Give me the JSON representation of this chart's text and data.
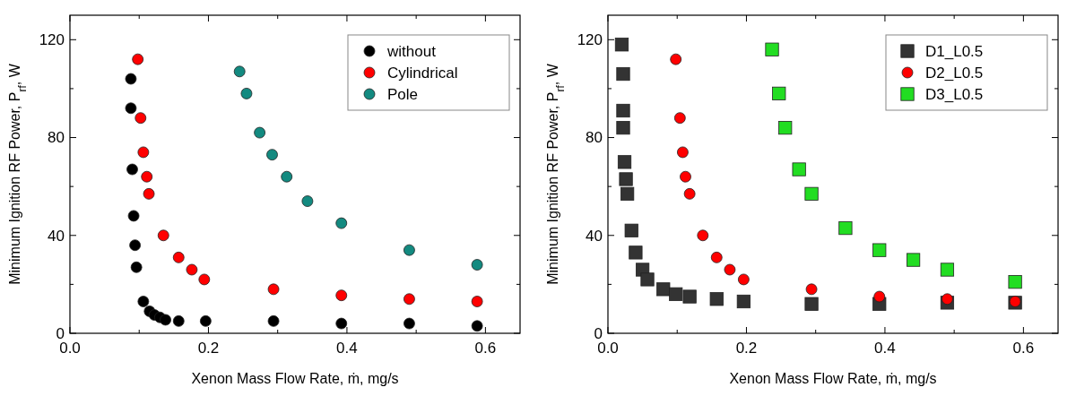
{
  "chart_data": [
    {
      "type": "scatter",
      "xlabel": "Xenon Mass Flow Rate, ṁ, mg/s",
      "ylabel": "Minimum Ignition RF Power, P$_{rf}$, W",
      "xlim": [
        0,
        0.65
      ],
      "ylim": [
        0,
        130
      ],
      "xticks": [
        {
          "value": 0,
          "label": "0.0"
        },
        {
          "value": 0.1,
          "label": null
        },
        {
          "value": 0.2,
          "label": "0.2"
        },
        {
          "value": 0.3,
          "label": null
        },
        {
          "value": 0.4,
          "label": "0.4"
        },
        {
          "value": 0.5,
          "label": null
        },
        {
          "value": 0.6,
          "label": "0.6"
        }
      ],
      "yticks": [
        0,
        {
          "value": 20,
          "label": null
        },
        40,
        {
          "value": 60,
          "label": null
        },
        80,
        {
          "value": 100,
          "label": null
        },
        120
      ],
      "legend": "top right",
      "marker": "circle",
      "series": [
        {
          "name": "without",
          "color": "#000000",
          "x": [
            0.088,
            0.088,
            0.09,
            0.092,
            0.094,
            0.096,
            0.106,
            0.115,
            0.122,
            0.13,
            0.138,
            0.157,
            0.196,
            0.294,
            0.392,
            0.49,
            0.588
          ],
          "values": [
            104,
            92,
            67,
            48,
            36,
            27,
            13,
            9,
            7.5,
            6.5,
            5.5,
            5,
            5,
            5,
            4,
            4,
            3
          ]
        },
        {
          "name": "Cylindrical",
          "color": "#ff0000",
          "x": [
            0.098,
            0.102,
            0.106,
            0.111,
            0.114,
            0.135,
            0.157,
            0.176,
            0.194,
            0.294,
            0.392,
            0.49,
            0.588
          ],
          "values": [
            112,
            88,
            74,
            64,
            57,
            40,
            31,
            26,
            22,
            18,
            15.5,
            14,
            13
          ]
        },
        {
          "name": "Pole",
          "color": "#138a80",
          "x": [
            0.245,
            0.255,
            0.274,
            0.292,
            0.313,
            0.343,
            0.392,
            0.49,
            0.588
          ],
          "values": [
            107,
            98,
            82,
            73,
            64,
            54,
            45,
            34,
            28
          ]
        }
      ]
    },
    {
      "type": "scatter",
      "xlabel": "Xenon Mass Flow Rate, ṁ, mg/s",
      "ylabel": "Minimum Ignition RF Power, P$_{rf}$, W",
      "xlim": [
        0,
        0.65
      ],
      "ylim": [
        0,
        130
      ],
      "xticks": [
        {
          "value": 0,
          "label": "0.0"
        },
        {
          "value": 0.1,
          "label": null
        },
        {
          "value": 0.2,
          "label": "0.2"
        },
        {
          "value": 0.3,
          "label": null
        },
        {
          "value": 0.4,
          "label": "0.4"
        },
        {
          "value": 0.5,
          "label": null
        },
        {
          "value": 0.6,
          "label": "0.6"
        }
      ],
      "yticks": [
        0,
        {
          "value": 20,
          "label": null
        },
        40,
        {
          "value": 60,
          "label": null
        },
        80,
        {
          "value": 100,
          "label": null
        },
        120
      ],
      "legend": "top right",
      "series": [
        {
          "name": "D1_L0.5",
          "color": "#333333",
          "marker": "square",
          "x": [
            0.02,
            0.022,
            0.022,
            0.022,
            0.024,
            0.026,
            0.028,
            0.034,
            0.04,
            0.05,
            0.057,
            0.08,
            0.098,
            0.118,
            0.157,
            0.196,
            0.294,
            0.392,
            0.49,
            0.588
          ],
          "values": [
            118,
            106,
            91,
            84,
            70,
            63,
            57,
            42,
            33,
            26,
            22,
            18,
            16,
            15,
            14,
            13,
            12,
            12,
            12.5,
            12.5
          ]
        },
        {
          "name": "D2_L0.5",
          "color": "#ff0000",
          "marker": "circle",
          "x": [
            0.098,
            0.104,
            0.108,
            0.112,
            0.118,
            0.137,
            0.157,
            0.176,
            0.196,
            0.294,
            0.392,
            0.49,
            0.588
          ],
          "values": [
            112,
            88,
            74,
            64,
            57,
            40,
            31,
            26,
            22,
            18,
            15,
            14,
            13
          ]
        },
        {
          "name": "D3_L0.5",
          "color": "#22dd22",
          "marker": "square",
          "x": [
            0.237,
            0.247,
            0.256,
            0.276,
            0.294,
            0.343,
            0.392,
            0.441,
            0.49,
            0.588
          ],
          "values": [
            116,
            98,
            84,
            67,
            57,
            43,
            34,
            30,
            26,
            21
          ]
        }
      ]
    }
  ]
}
